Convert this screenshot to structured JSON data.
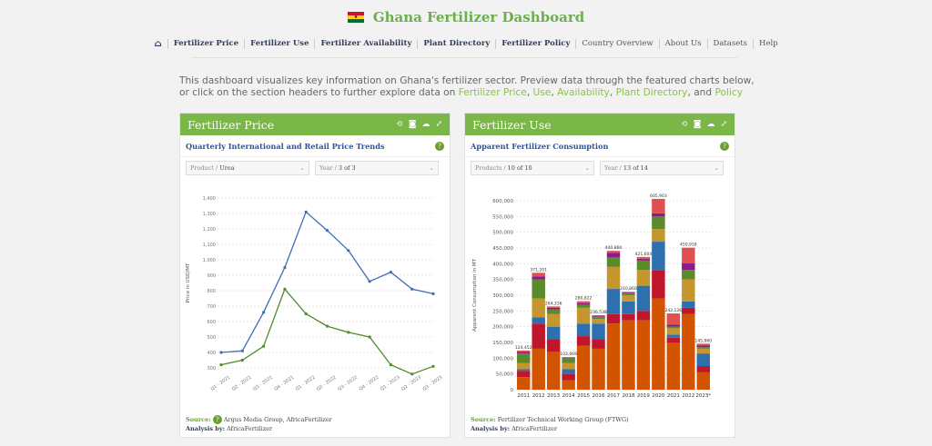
{
  "header": {
    "title": "Ghana Fertilizer Dashboard",
    "flag_colors": [
      "#ce1126",
      "#fcd116",
      "#006b3f"
    ]
  },
  "nav": {
    "home_icon": "home-icon",
    "items": [
      "Fertilizer Price",
      "Fertilizer Use",
      "Fertilizer Availability",
      "Plant Directory",
      "Fertilizer Policy",
      "Country Overview",
      "About Us",
      "Datasets",
      "Help"
    ]
  },
  "intro": {
    "text_before": "This dashboard visualizes key information on Ghana's fertilizer sector. Preview data through the featured charts below, or click on the section headers to further explore data on ",
    "links": [
      "Fertilizer Price",
      "Use",
      "Availability",
      "Plant Directory",
      "Policy"
    ],
    "sep1": ", ",
    "sep2": ", ",
    "sep3": ", ",
    "sep4": ", and "
  },
  "price_panel": {
    "title": "Fertilizer Price",
    "subtitle": "Quarterly International and Retail Price Trends",
    "product_label": "Product / ",
    "product_value": "Urea",
    "year_label": "Year / ",
    "year_value": "3 of 3",
    "source_label": "Source:",
    "source_text": "Argus Media Group, AfricaFertilizer",
    "analysis_label": "Analysis by:",
    "analysis_text": "AfricaFertilizer"
  },
  "use_panel": {
    "title": "Fertilizer Use",
    "subtitle": "Apparent Fertilizer Consumption",
    "product_label": "Products / ",
    "product_value": "10 of 10",
    "year_label": "Year / ",
    "year_value": "13 of 14",
    "source_label": "Source:",
    "source_text": "Fertilizer Technical Working Group (FTWG)",
    "analysis_label": "Analysis by:",
    "analysis_text": "AfricaFertilizer"
  },
  "chart_data": [
    {
      "type": "line",
      "ylabel": "Price in USD/MT",
      "ylim": [
        300,
        1400
      ],
      "yticks": [
        300,
        400,
        500,
        600,
        700,
        800,
        900,
        1000,
        1100,
        1200,
        1300,
        1400
      ],
      "categories": [
        "Q1 - 2021",
        "Q2 - 2021",
        "Q3 - 2021",
        "Q4 - 2021",
        "Q1 - 2022",
        "Q2 - 2022",
        "Q3 - 2022",
        "Q4 - 2022",
        "Q1 - 2023",
        "Q2 - 2023",
        "Q3 - 2023"
      ],
      "series": [
        {
          "color": "#3e6eb4",
          "values": [
            400,
            410,
            660,
            950,
            1310,
            1190,
            1060,
            860,
            920,
            810,
            780
          ]
        },
        {
          "color": "#4e8a2e",
          "values": [
            320,
            350,
            440,
            810,
            650,
            570,
            530,
            500,
            320,
            260,
            310
          ]
        }
      ],
      "grid": true
    },
    {
      "type": "bar",
      "ylabel": "Apparent Consumption in MT",
      "ylim": [
        0,
        600000
      ],
      "yticks": [
        0,
        50000,
        100000,
        150000,
        200000,
        250000,
        300000,
        350000,
        400000,
        450000,
        500000,
        550000,
        600000
      ],
      "categories": [
        "2011",
        "2012",
        "2013",
        "2014",
        "2015",
        "2016",
        "2017",
        "2018",
        "2019",
        "2020",
        "2021",
        "2022",
        "2023*"
      ],
      "totals": [
        124452,
        371201,
        264336,
        103669,
        280822,
        236538,
        440860,
        310860,
        421604,
        605903,
        242136,
        450918,
        145960
      ],
      "total_labels": [
        "124,452",
        "371,201",
        "264,336",
        "103,669",
        "280,822",
        "236,538",
        "440,860",
        "310,860",
        "421,604",
        "605,903",
        "242,136",
        "450,918",
        "145,960"
      ],
      "stack_colors": [
        "#d35400",
        "#c0162c",
        "#2e6fad",
        "#c5962e",
        "#5a8a2b",
        "#8b1a8a",
        "#e05050"
      ],
      "stacks": [
        [
          40000,
          20000,
          5000,
          20000,
          30000,
          5000,
          4452
        ],
        [
          130000,
          80000,
          20000,
          60000,
          60000,
          10000,
          11201
        ],
        [
          120000,
          40000,
          40000,
          40000,
          15000,
          5000,
          4336
        ],
        [
          30000,
          20000,
          15000,
          20000,
          15000,
          2000,
          1669
        ],
        [
          140000,
          30000,
          40000,
          50000,
          10000,
          5000,
          5822
        ],
        [
          130000,
          30000,
          50000,
          15000,
          5000,
          3000,
          3538
        ],
        [
          210000,
          30000,
          80000,
          70000,
          30000,
          15000,
          5860
        ],
        [
          220000,
          20000,
          40000,
          20000,
          5000,
          3000,
          2860
        ],
        [
          220000,
          30000,
          80000,
          50000,
          30000,
          6000,
          5604
        ],
        [
          290000,
          90000,
          90000,
          40000,
          40000,
          10000,
          45903
        ],
        [
          150000,
          15000,
          10000,
          20000,
          5000,
          6136,
          36000
        ],
        [
          240000,
          20000,
          20000,
          70000,
          30000,
          20918,
          50000
        ],
        [
          55000,
          20000,
          40000,
          15000,
          5000,
          5000,
          5960
        ]
      ],
      "grid": true
    }
  ]
}
